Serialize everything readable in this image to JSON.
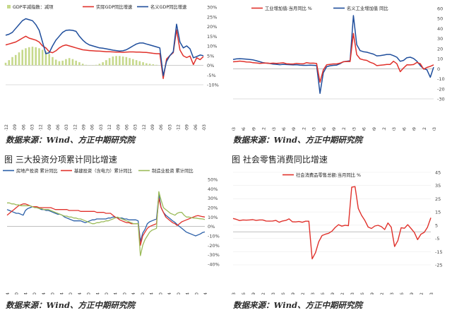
{
  "source_text": "数据来源：Wind、方正中期研究院",
  "captions": {
    "bottom_left": "图   三大投资分项累计同比增速",
    "bottom_right": "图   社会零售消费同比增速"
  },
  "chart_data": [
    {
      "type": "line",
      "panel": "top-left",
      "title": "",
      "series": [
        {
          "name": "GDP平减指数：减项",
          "kind": "bar",
          "axis": "left",
          "color": "#c6d98b",
          "values": [
            1,
            2,
            3.2,
            4,
            5,
            6,
            6.6,
            7,
            7.2,
            7,
            6.6,
            6,
            5.4,
            4.4,
            3.2,
            2.2,
            1.6,
            1.8,
            2.4,
            2.8,
            2.4,
            1.8,
            1.2,
            0.6,
            0.2,
            0.1,
            0.1,
            0.2,
            0.6,
            1.2,
            2,
            2.8,
            3.4,
            3.6,
            3.6,
            3.4,
            3.2,
            2.8,
            2.4,
            2,
            1.6,
            1.2,
            0.8,
            0.6,
            0.4,
            0.2,
            0,
            0,
            0,
            0,
            0,
            0,
            0,
            0,
            0,
            0,
            0,
            0,
            0,
            0
          ]
        },
        {
          "name": "实际GDP同比增速",
          "kind": "line",
          "axis": "right",
          "color": "#e0312b",
          "values": [
            10.5,
            11,
            11.5,
            12,
            13,
            14,
            15,
            14,
            13.5,
            13,
            12,
            10,
            9,
            7,
            6.5,
            7.5,
            9,
            10,
            10.5,
            10,
            9.5,
            9,
            8.5,
            8,
            7.8,
            7.6,
            7.5,
            7.4,
            7.3,
            7.2,
            7,
            7,
            6.9,
            6.8,
            6.8,
            6.7,
            6.8,
            6.9,
            6.9,
            6.8,
            6.8,
            6.7,
            6.6,
            6.4,
            6.2,
            6,
            6,
            -6.8,
            3.2,
            5,
            6.5,
            18.3,
            7.9,
            4.9,
            4,
            4.8,
            0.4,
            3.9,
            2.9,
            4.5
          ]
        },
        {
          "name": "名义GDP同比增速",
          "kind": "line",
          "axis": "right",
          "color": "#1f4e9c",
          "values": [
            15.5,
            16,
            17,
            19,
            21,
            23,
            24,
            23.5,
            23,
            21,
            18,
            12,
            6,
            6.5,
            10,
            13,
            15,
            17,
            18,
            18.2,
            18,
            17.5,
            15,
            13,
            11.5,
            10.5,
            10,
            9.5,
            9,
            8.8,
            8.5,
            8.2,
            7.8,
            7.6,
            7.4,
            7.5,
            8,
            9,
            10,
            11,
            11.5,
            11.5,
            11,
            10.5,
            10,
            9.5,
            9,
            -5.3,
            2,
            5,
            7,
            21.2,
            12,
            9,
            10,
            8.5,
            3.9,
            4.5,
            5.3,
            5
          ]
        }
      ],
      "ylim_left": [
        0,
        30
      ],
      "ylim_right": [
        -10,
        30
      ],
      "right_ticks": [
        "30%",
        "25%",
        "20%",
        "15%",
        "10%",
        "5%",
        "0%",
        "-5%",
        "-10%"
      ],
      "x_ticks": [
        "2005-12",
        "2006-09",
        "2007-06",
        "2008-03",
        "2008-12",
        "2009-09",
        "2010-06",
        "2011-03",
        "2011-12",
        "2012-09",
        "2013-06",
        "2014-03",
        "2014-12",
        "2015-09",
        "2016-06",
        "2017-03",
        "2017-12",
        "2018-09",
        "2019-06",
        "2020-03",
        "2020-12",
        "2021-09",
        "2022-06",
        "2023-03"
      ]
    },
    {
      "type": "line",
      "panel": "top-right",
      "title": "",
      "series": [
        {
          "name": "工业增加值:当月同比 %",
          "color": "#e0312b",
          "values": [
            6.9,
            7.2,
            7.6,
            7.3,
            6.8,
            6.6,
            6,
            5.8,
            5.4,
            5.6,
            5.7,
            5.4,
            5.6,
            5.4,
            5.6,
            5.9,
            5,
            4.8,
            4.7,
            5.4,
            5,
            4.9,
            6.1,
            5.5,
            5.6,
            5.2,
            -13.5,
            -1.1,
            3.9,
            4.4,
            4.8,
            4.8,
            5.6,
            6.9,
            7.3,
            7.2,
            35.1,
            14.1,
            9.8,
            8.9,
            8.3,
            6.4,
            5.3,
            3.1,
            3.5,
            3.8,
            4.3,
            4.3,
            7.5,
            5,
            -2.9,
            0.7,
            3.9,
            3.8,
            4.2,
            6.3,
            5,
            -0.4,
            1.3,
            2.4,
            3.9
          ]
        },
        {
          "name": "名义工业增加值 同比",
          "color": "#1f4e9c",
          "values": [
            9.2,
            9.8,
            10,
            9.8,
            9.5,
            9.2,
            8.8,
            8,
            7,
            6,
            5.6,
            5.2,
            4.6,
            4.4,
            4,
            4.4,
            4.2,
            4,
            3.8,
            4,
            3.6,
            3.4,
            3.4,
            3.6,
            3.4,
            3.2,
            -24.5,
            -4,
            2,
            3,
            3.4,
            3.6,
            5,
            7,
            7.5,
            8,
            53,
            24,
            18,
            17,
            16.5,
            15.5,
            14.6,
            12.8,
            13,
            13.6,
            14.2,
            14.2,
            13,
            11.5,
            7.4,
            8.3,
            11,
            11.5,
            10.2,
            7.5,
            3.1,
            0,
            -1,
            -8.5,
            1.6
          ]
        }
      ],
      "ylim": [
        -30,
        60
      ],
      "right_ticks": [
        "60",
        "50",
        "40",
        "30",
        "20",
        "10",
        "0",
        "-10",
        "-20",
        "-30"
      ],
      "x_ticks": [
        "2018-03",
        "2018-06",
        "2018-09",
        "2018-12",
        "2019-03",
        "2019-06",
        "2019-09",
        "2019-12",
        "2020-03",
        "2020-06",
        "2020-09",
        "2020-12",
        "2021-03",
        "2021-06",
        "2021-09",
        "2021-12",
        "2022-03",
        "2022-06",
        "2022-09",
        "2022-12",
        "2023-03"
      ]
    },
    {
      "type": "line",
      "panel": "bottom-left",
      "title": "",
      "series": [
        {
          "name": "房地产投资 累计同比",
          "color": "#2a5fa8",
          "values": [
            18,
            17,
            16,
            15,
            14,
            14,
            13,
            12,
            17,
            19,
            20,
            21,
            21,
            20,
            19,
            18,
            18,
            17,
            17,
            16,
            15,
            14,
            13,
            13,
            12,
            10,
            9,
            8,
            7,
            6,
            6,
            6,
            6,
            5,
            4,
            5,
            6,
            7,
            7,
            8,
            8,
            8,
            8,
            8,
            9,
            9,
            10,
            10,
            9,
            9,
            9,
            8,
            8,
            7,
            7,
            7,
            7,
            6,
            -16,
            -7,
            -3,
            3,
            5,
            6,
            7,
            8,
            34,
            20,
            15,
            12,
            10,
            8,
            6,
            4.4,
            2,
            0,
            -2,
            -4,
            -6,
            -7,
            -8,
            -9,
            -10,
            -9,
            -8,
            -6.5,
            -5.8
          ]
        },
        {
          "name": "基建投资（含电力）累计同比",
          "color": "#e0312b",
          "values": [
            12,
            14,
            16,
            18,
            20,
            22,
            23,
            24,
            24,
            23,
            22,
            21,
            21,
            21,
            20,
            20,
            20,
            20,
            20,
            20,
            19,
            18,
            18,
            18,
            18,
            18,
            18,
            17,
            17,
            17,
            17,
            17,
            16,
            16,
            16,
            16,
            16,
            16,
            16,
            15,
            15,
            15,
            15,
            14,
            14,
            14,
            12,
            10,
            9,
            7,
            6,
            5,
            4,
            4,
            3,
            3,
            3,
            3,
            -20,
            -10,
            -6,
            -2,
            0,
            1,
            2,
            3,
            30,
            20,
            15,
            10,
            8,
            6,
            4,
            3,
            1,
            3,
            5,
            6,
            7,
            8,
            9,
            10,
            11,
            11.5,
            11,
            10.5,
            10
          ]
        },
        {
          "name": "制造业投资 累计同比",
          "color": "#9bbb59",
          "values": [
            25,
            25,
            24,
            24,
            23,
            23,
            22,
            22,
            22,
            22,
            22,
            21,
            20,
            20,
            19,
            19,
            18,
            18,
            18,
            17,
            16,
            15,
            14,
            13,
            12,
            11,
            11,
            10,
            10,
            9,
            9,
            8,
            8,
            7,
            6,
            5,
            4,
            3,
            3,
            4,
            4,
            5,
            5,
            6,
            6,
            7,
            8,
            9,
            10,
            9,
            8,
            7,
            6,
            5,
            4,
            3,
            3,
            3,
            -31,
            -20,
            -14,
            -10,
            -6,
            -4,
            -3,
            -2,
            37,
            28,
            20,
            18,
            16,
            14,
            13,
            12,
            14,
            15,
            15,
            12,
            10,
            10,
            9.5,
            9,
            9,
            8.5,
            8.2,
            8,
            7.5
          ]
        }
      ],
      "ylim": [
        -40,
        50
      ],
      "right_ticks": [
        "50%",
        "40%",
        "30%",
        "20%",
        "10%",
        "0%",
        "-10%",
        "-20%",
        "-30%",
        "-40%"
      ],
      "x_ticks": [
        "2012-04",
        "2012-10",
        "2013-04",
        "2013-10",
        "2014-04",
        "2014-10",
        "2015-04",
        "2015-10",
        "2016-04",
        "2016-10",
        "2017-04",
        "2017-10",
        "2018-04",
        "2018-10",
        "2019-04",
        "2019-10",
        "2020-04",
        "2020-10",
        "2021-04",
        "2021-10",
        "2022-04",
        "2022-10",
        "2023-04"
      ]
    },
    {
      "type": "line",
      "panel": "bottom-right",
      "title": "",
      "series": [
        {
          "name": "社会消费品零售总额:当月同比 %",
          "color": "#e0312b",
          "values": [
            10.1,
            9.4,
            8.5,
            9,
            8.8,
            9,
            9.2,
            8.6,
            9,
            9,
            8.2,
            8.1,
            8.2,
            8.6,
            7.2,
            8.2,
            8.6,
            9.8,
            7.6,
            7.5,
            7.8,
            7.2,
            8,
            8,
            -20.5,
            -15.8,
            -7.5,
            -2.8,
            -1.8,
            -1.1,
            0.5,
            3.3,
            5.4,
            4.3,
            5,
            4.6,
            33.8,
            34.2,
            17.7,
            12.4,
            8.5,
            3.6,
            2.5,
            4.4,
            4.9,
            3.9,
            1.7,
            6.7,
            3.5,
            -11.1,
            -6.7,
            3.1,
            2.7,
            5.4,
            2.5,
            -0.5,
            -5.9,
            -1.8,
            -0.4,
            3.5,
            10.6
          ]
        }
      ],
      "ylim": [
        -25,
        45
      ],
      "right_ticks": [
        "45",
        "35",
        "25",
        "15",
        "5",
        "-5",
        "-15",
        "-25"
      ],
      "x_ticks": [
        "2018-03",
        "2018-06",
        "2018-09",
        "2018-12",
        "2019-03",
        "2019-06",
        "2019-09",
        "2019-12",
        "2020-03",
        "2020-06",
        "2020-09",
        "2020-12",
        "2021-03",
        "2021-06",
        "2021-09",
        "2021-12",
        "2022-03",
        "2022-06",
        "2022-09",
        "2022-12",
        "2023-03"
      ]
    }
  ]
}
